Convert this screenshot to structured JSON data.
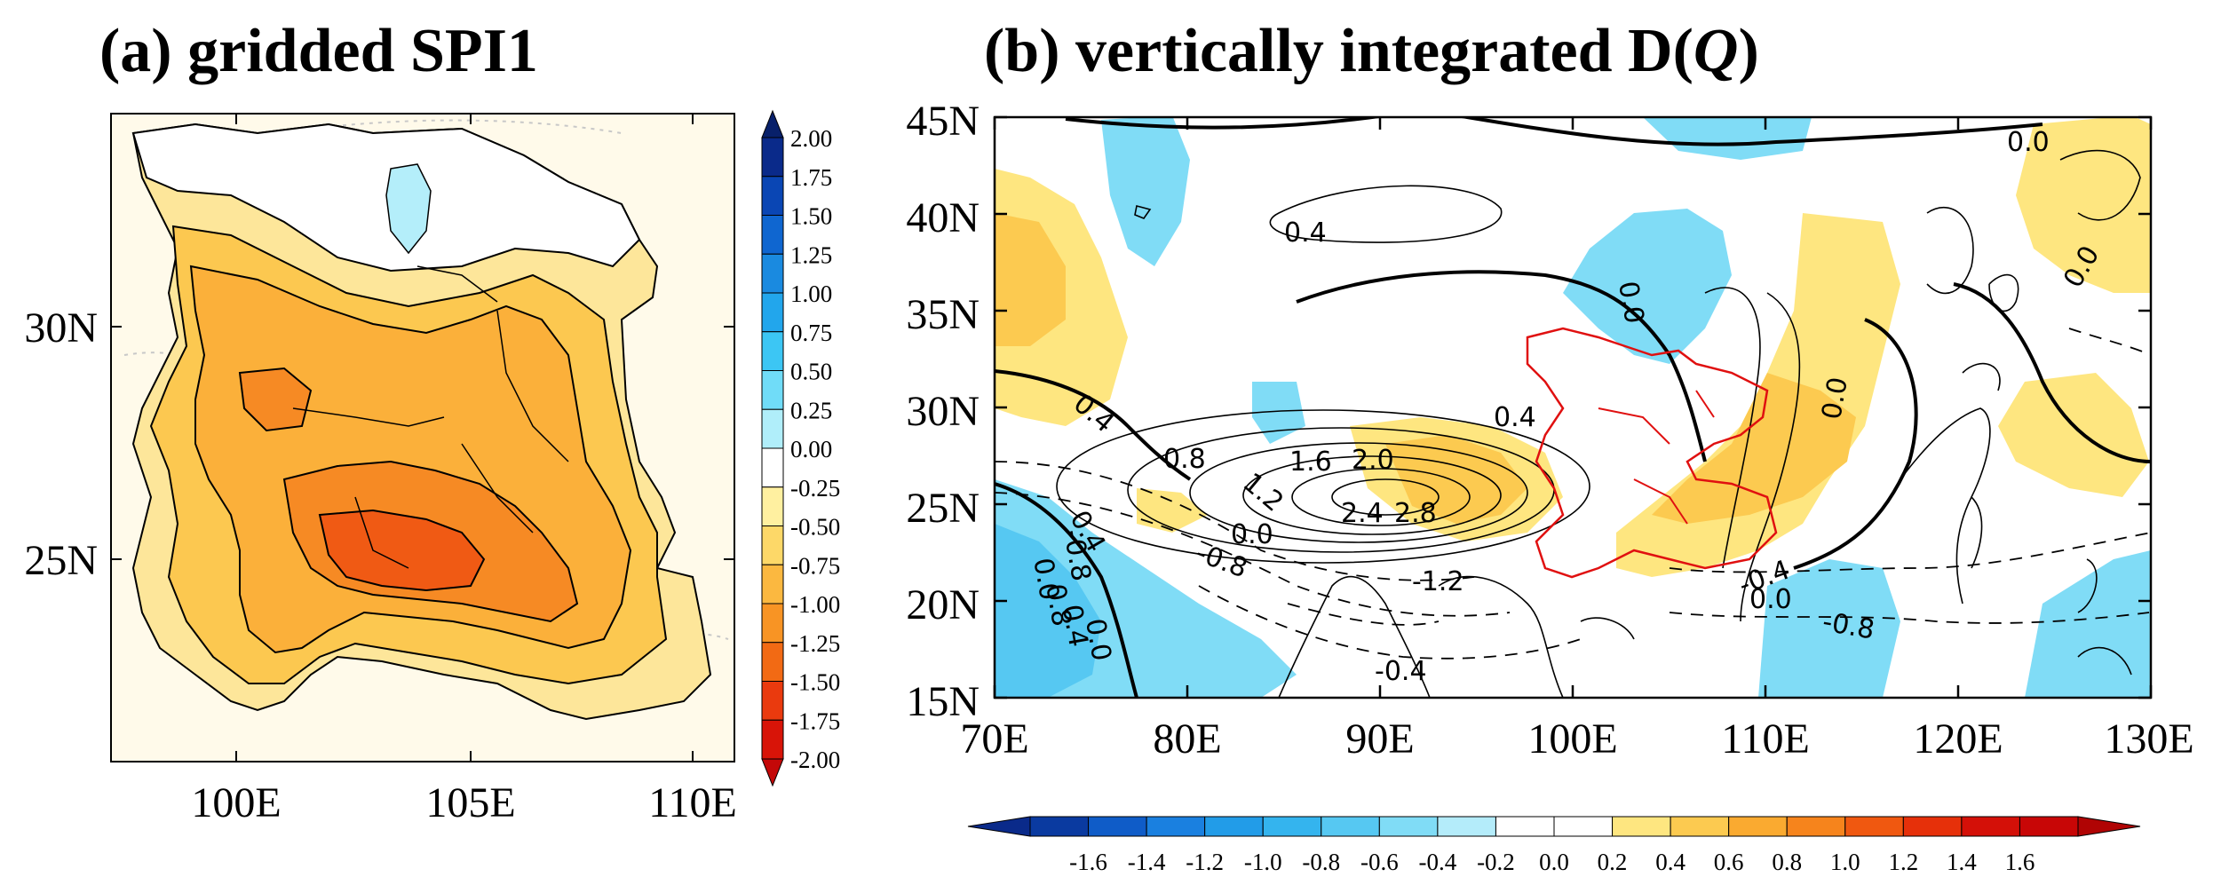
{
  "panels": {
    "a": {
      "title": "(a) gridded SPI1",
      "y_ticks": [
        "30N",
        "25N"
      ],
      "x_ticks": [
        "100E",
        "105E",
        "110E"
      ],
      "colorbar": {
        "labels": [
          "2.00",
          "1.75",
          "1.50",
          "1.25",
          "1.00",
          "0.75",
          "0.50",
          "0.25",
          "0.00",
          "-0.25",
          "-0.50",
          "-0.75",
          "-1.00",
          "-1.25",
          "-1.50",
          "-1.75",
          "-2.00"
        ],
        "colors": [
          "#0a2a8a",
          "#0a46b4",
          "#0f66d0",
          "#1a8ae0",
          "#22a6ec",
          "#3cc6f4",
          "#70dcf8",
          "#b0eefa",
          "#ffffff",
          "#fff0a0",
          "#fdd868",
          "#fbb840",
          "#f89424",
          "#f26a14",
          "#ea3a0e",
          "#d81408"
        ]
      },
      "contour_labels": []
    },
    "b": {
      "title_prefix": "(b) vertically integrated D(",
      "title_q": "Q",
      "title_suffix": ")",
      "y_ticks": [
        "45N",
        "40N",
        "35N",
        "30N",
        "25N",
        "20N",
        "15N"
      ],
      "x_ticks": [
        "70E",
        "80E",
        "90E",
        "100E",
        "110E",
        "120E",
        "130E"
      ],
      "colorbar": {
        "labels": [
          "-1.6",
          "-1.4",
          "-1.2",
          "-1.0",
          "-0.8",
          "-0.6",
          "-0.4",
          "-0.2",
          "0.0",
          "0.2",
          "0.4",
          "0.6",
          "0.8",
          "1.0",
          "1.2",
          "1.4",
          "1.6"
        ],
        "colors": [
          "#0a3aa0",
          "#0f5cc8",
          "#1a80e0",
          "#229ce8",
          "#34b4ee",
          "#56c8f2",
          "#80dcf6",
          "#b4ecfa",
          "#ffffff",
          "#ffffff",
          "#fee680",
          "#fcca50",
          "#faaa30",
          "#f6841c",
          "#f05810",
          "#e6300a",
          "#d41008",
          "#c80606"
        ]
      },
      "contour_labels": [
        {
          "text": "0.0"
        },
        {
          "text": "0.4"
        },
        {
          "text": "0.0"
        },
        {
          "text": "0.0"
        },
        {
          "text": "0.4"
        },
        {
          "text": "0.8"
        },
        {
          "text": "1.6"
        },
        {
          "text": "2.0"
        },
        {
          "text": "0.4"
        },
        {
          "text": "1.2"
        },
        {
          "text": "2.4"
        },
        {
          "text": "2.8"
        },
        {
          "text": "0.0"
        },
        {
          "text": "-0.8"
        },
        {
          "text": "-1.2"
        },
        {
          "text": "0.4"
        },
        {
          "text": "0.0"
        },
        {
          "text": "-0.8"
        },
        {
          "text": "0.0"
        },
        {
          "text": "-0.4"
        },
        {
          "text": "0.0"
        },
        {
          "text": "0.8"
        },
        {
          "text": "0.4"
        },
        {
          "text": "0.0"
        },
        {
          "text": "-0.4"
        },
        {
          "text": "-0.8"
        }
      ]
    }
  }
}
